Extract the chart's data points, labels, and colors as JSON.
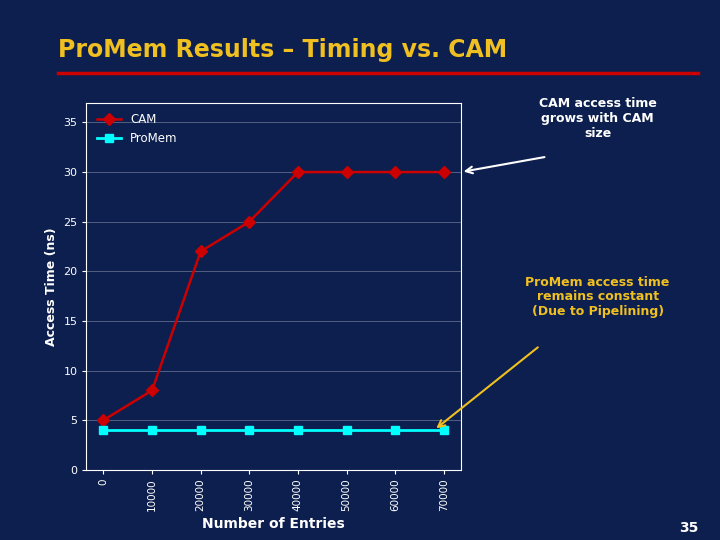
{
  "title": "ProMem Results – Timing vs. CAM",
  "xlabel": "Number of Entries",
  "ylabel": "Access Time (ns)",
  "background_color": "#0d1f4e",
  "title_color": "#f0c020",
  "axis_text_color": "#ffffff",
  "grid_color": "#ffffff",
  "x_values": [
    0,
    10000,
    20000,
    30000,
    40000,
    50000,
    60000,
    70000
  ],
  "promem_y": [
    4,
    4,
    4,
    4,
    4,
    4,
    4,
    4
  ],
  "cam_y": [
    5,
    8,
    22,
    25,
    30,
    30,
    30,
    30
  ],
  "promem_color": "#00ffff",
  "cam_color": "#cc0000",
  "promem_marker": "s",
  "cam_marker": "D",
  "ylim": [
    0,
    37
  ],
  "yticks": [
    0,
    5,
    10,
    15,
    20,
    25,
    30,
    35
  ],
  "xticks": [
    0,
    10000,
    20000,
    30000,
    40000,
    50000,
    60000,
    70000
  ],
  "annotation_cam_text": "CAM access time\ngrows with CAM\nsize",
  "annotation_cam_color": "#ffffff",
  "annotation_promem_text": "ProMem access time\nremains constant\n(Due to Pipelining)",
  "annotation_promem_color": "#f0c020",
  "red_line_color": "#cc0000",
  "slide_number": "35"
}
